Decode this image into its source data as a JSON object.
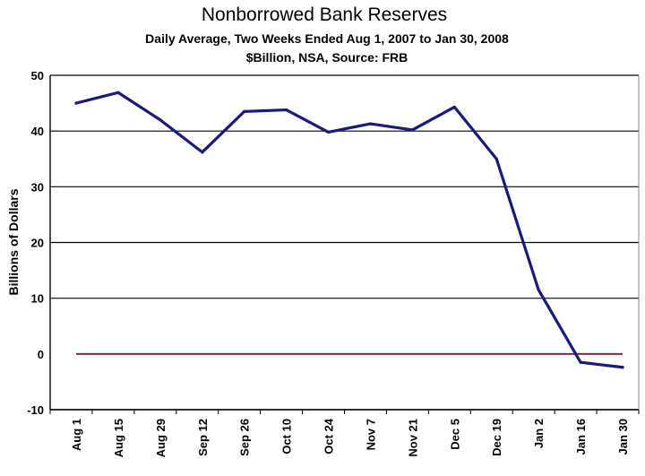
{
  "chart_data": {
    "type": "line",
    "title": "Nonborrowed Bank Reserves",
    "subtitle_line1": "Daily Average, Two Weeks Ended Aug 1, 2007 to Jan 30, 2008",
    "subtitle_line2": "$Billion, NSA, Source: FRB",
    "xlabel": "",
    "ylabel": "Billions of Dollars",
    "ylim": [
      -10,
      50
    ],
    "yticks": [
      "50",
      "40",
      "30",
      "20",
      "10",
      "0",
      "-10"
    ],
    "categories": [
      "Aug 1",
      "Aug 15",
      "Aug 29",
      "Sep 12",
      "Sep 26",
      "Oct 10",
      "Oct 24",
      "Nov 7",
      "Nov 21",
      "Dec 5",
      "Dec 19",
      "Jan 2",
      "Jan 16",
      "Jan 30"
    ],
    "series": [
      {
        "values": [
          45.0,
          46.9,
          42.0,
          36.2,
          43.5,
          43.8,
          39.8,
          41.3,
          40.2,
          44.3,
          35.0,
          11.5,
          -1.5,
          -2.4
        ]
      }
    ],
    "grid": true,
    "legend": "none",
    "colors": {
      "line": "#1a1a7a",
      "zero_line": "#7a2a4a",
      "grid": "#000000",
      "background": "#ffffff"
    }
  }
}
